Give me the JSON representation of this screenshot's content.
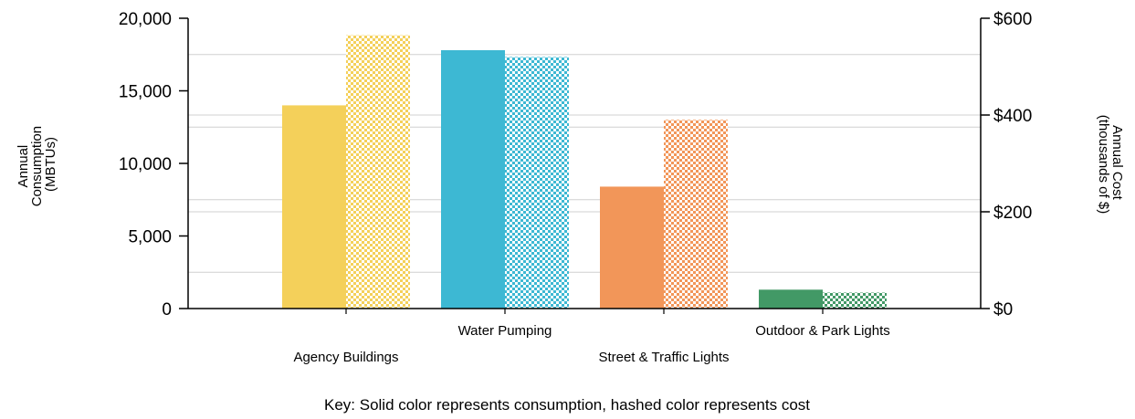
{
  "chart_data": {
    "type": "bar",
    "categories": [
      "Agency Buildings",
      "Water Pumping",
      "Street & Traffic Lights",
      "Outdoor & Park Lights"
    ],
    "series": [
      {
        "measure": "consumption",
        "axis": "left",
        "pattern": "solid",
        "values": [
          14000,
          17800,
          8400,
          1300
        ]
      },
      {
        "measure": "cost",
        "axis": "right",
        "pattern": "hashed",
        "values": [
          565,
          520,
          390,
          33
        ]
      }
    ],
    "category_colors": [
      "#F4D05A",
      "#3DB8D3",
      "#F29659",
      "#429966"
    ],
    "y_left": {
      "label_lines": [
        "Annual",
        "Consumption",
        "(MBTUs)"
      ],
      "ylim": [
        0,
        20000
      ],
      "ticks": [
        0,
        5000,
        10000,
        15000,
        20000
      ],
      "tick_labels": [
        "0",
        "5,000",
        "10,000",
        "15,000",
        "20,000"
      ]
    },
    "y_right": {
      "label_lines": [
        "Annual Cost",
        "(thousands of $)"
      ],
      "ylim": [
        0,
        600
      ],
      "ticks": [
        0,
        200,
        400,
        600
      ],
      "tick_labels": [
        "$0",
        "$200",
        "$400",
        "$600"
      ]
    },
    "grid": true,
    "legend": "none",
    "note": "Key: Solid color represents consumption, hashed color represents cost"
  }
}
